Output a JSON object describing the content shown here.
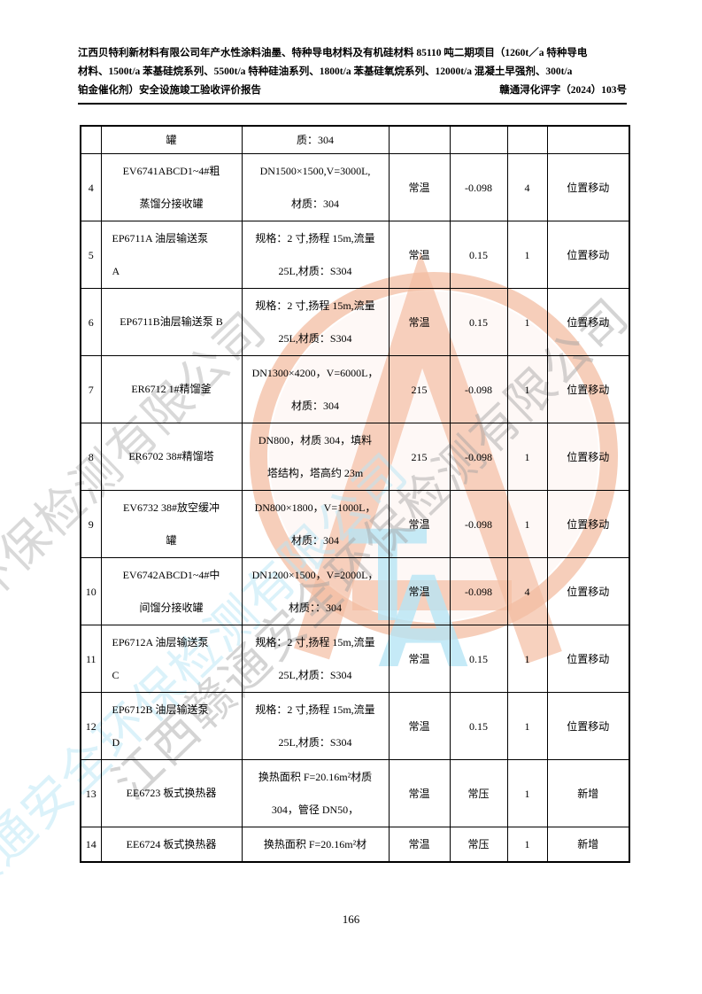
{
  "header": {
    "line1": "江西贝特利新材料有限公司年产水性涂料油墨、特种导电材料及有机硅材料 85110 吨二期项目（1260t／a 特种导电",
    "line2": "材料、1500t/a 苯基硅烷系列、5500t/a 特种硅油系列、1800t/a 苯基硅氧烷系列、12000t/a 混凝土早强剂、300t/a",
    "line3_left": "铂金催化剂）安全设施竣工验收评价报告",
    "line3_right": "赣通浔化评字（2024）103号"
  },
  "table": {
    "continuation_row": {
      "name": "罐",
      "spec": "质：304"
    },
    "rows": [
      {
        "no": "4",
        "name_lines": [
          "EV6741ABCD1~4#粗",
          "蒸馏分接收罐"
        ],
        "name_align": "center",
        "spec_lines": [
          "DN1500×1500,V=3000L,",
          "材质：304"
        ],
        "temp": "常温",
        "pressure": "-0.098",
        "qty": "4",
        "change": "位置移动"
      },
      {
        "no": "5",
        "name_lines": [
          "EP6711A 油层输送泵",
          "A"
        ],
        "name_align": "left",
        "spec_lines": [
          "规格：2 寸,扬程 15m,流量",
          "25L,材质：S304"
        ],
        "temp": "常温",
        "pressure": "0.15",
        "qty": "1",
        "change": "位置移动"
      },
      {
        "no": "6",
        "name_lines": [
          "EP6711B油层输送泵 B"
        ],
        "name_align": "center",
        "spec_lines": [
          "规格：2 寸,扬程 15m,流量",
          "25L,材质：S304"
        ],
        "temp": "常温",
        "pressure": "0.15",
        "qty": "1",
        "change": "位置移动"
      },
      {
        "no": "7",
        "name_lines": [
          "ER6712 1#精馏釜"
        ],
        "name_align": "center",
        "spec_lines": [
          "DN1300×4200，V=6000L，",
          "材质：304"
        ],
        "temp": "215",
        "pressure": "-0.098",
        "qty": "1",
        "change": "位置移动"
      },
      {
        "no": "8",
        "name_lines": [
          "ER6702 38#精馏塔"
        ],
        "name_align": "center",
        "spec_lines": [
          "DN800，材质 304，填料",
          "塔结构，塔高约 23m"
        ],
        "temp": "215",
        "pressure": "-0.098",
        "qty": "1",
        "change": "位置移动"
      },
      {
        "no": "9",
        "name_lines": [
          "EV6732 38#放空缓冲",
          "罐"
        ],
        "name_align": "center",
        "spec_lines": [
          "DN800×1800，V=1000L，",
          "材质：304"
        ],
        "temp": "常温",
        "pressure": "-0.098",
        "qty": "1",
        "change": "位置移动"
      },
      {
        "no": "10",
        "name_lines": [
          "EV6742ABCD1~4#中",
          "间馏分接收罐"
        ],
        "name_align": "center",
        "spec_lines": [
          "DN1200×1500，V=2000L，",
          "材质：：304"
        ],
        "temp": "常温",
        "pressure": "-0.098",
        "qty": "4",
        "change": "位置移动"
      },
      {
        "no": "11",
        "name_lines": [
          "EP6712A 油层输送泵",
          "C"
        ],
        "name_align": "left",
        "spec_lines": [
          "规格：2 寸,扬程 15m,流量",
          "25L,材质：S304"
        ],
        "temp": "常温",
        "pressure": "0.15",
        "qty": "1",
        "change": "位置移动"
      },
      {
        "no": "12",
        "name_lines": [
          "EP6712B 油层输送泵",
          "D"
        ],
        "name_align": "left",
        "spec_lines": [
          "规格：2 寸,扬程 15m,流量",
          "25L,材质：S304"
        ],
        "temp": "常温",
        "pressure": "0.15",
        "qty": "1",
        "change": "位置移动"
      },
      {
        "no": "13",
        "name_lines": [
          "EE6723  板式换热器"
        ],
        "name_align": "center",
        "spec_lines": [
          "换热面积 F=20.16m²材质",
          "304，管径 DN50，"
        ],
        "temp": "常温",
        "pressure": "常压",
        "qty": "1",
        "change": "新增"
      },
      {
        "no": "14",
        "name_lines": [
          "EE6724  板式换热器"
        ],
        "name_align": "center",
        "spec_lines": [
          "换热面积 F=20.16m²材"
        ],
        "temp": "常温",
        "pressure": "常压",
        "qty": "1",
        "change": "新增"
      }
    ]
  },
  "footer": {
    "page_number": "166"
  },
  "watermark": {
    "ta_t": "T",
    "ta_a": "A",
    "company_text": "江西赣通安全环保检测有限公司",
    "orange": "#f3bda3",
    "blue": "#b7e5f5",
    "gray": "#a0a0a0"
  }
}
